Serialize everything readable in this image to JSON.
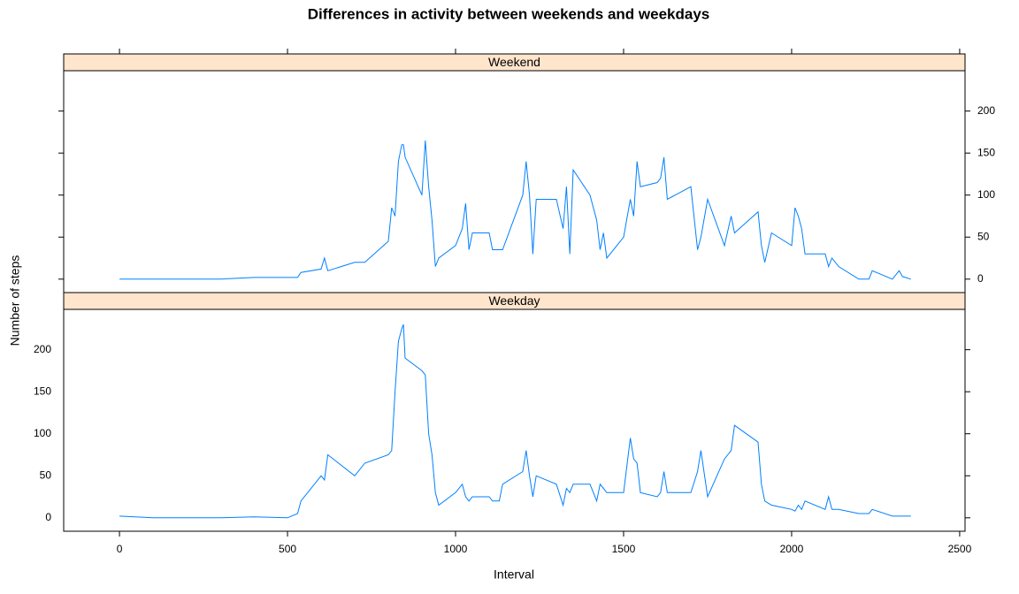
{
  "chart_data": {
    "type": "line",
    "title": "Differences in activity between weekends and weekdays",
    "xlabel": "Interval",
    "ylabel": "Number of steps",
    "x": [
      0,
      100,
      200,
      300,
      400,
      500,
      530,
      540,
      600,
      610,
      620,
      700,
      730,
      800,
      810,
      820,
      830,
      840,
      845,
      850,
      900,
      910,
      920,
      930,
      940,
      950,
      1000,
      1020,
      1030,
      1040,
      1050,
      1100,
      1110,
      1130,
      1140,
      1200,
      1210,
      1220,
      1230,
      1240,
      1300,
      1320,
      1330,
      1340,
      1350,
      1400,
      1420,
      1430,
      1440,
      1450,
      1500,
      1520,
      1530,
      1540,
      1550,
      1600,
      1610,
      1620,
      1630,
      1700,
      1720,
      1730,
      1750,
      1800,
      1820,
      1830,
      1900,
      1910,
      1920,
      1940,
      2000,
      2010,
      2020,
      2030,
      2040,
      2100,
      2110,
      2120,
      2140,
      2200,
      2230,
      2240,
      2300,
      2320,
      2330,
      2355
    ],
    "series": [
      {
        "name": "Weekend",
        "color": "#0080ff",
        "values": [
          0,
          0,
          0,
          0,
          2,
          2,
          2,
          8,
          12,
          25,
          10,
          20,
          20,
          45,
          85,
          75,
          140,
          160,
          160,
          145,
          100,
          165,
          110,
          70,
          15,
          25,
          40,
          60,
          90,
          35,
          55,
          55,
          35,
          35,
          35,
          100,
          140,
          100,
          30,
          95,
          95,
          60,
          110,
          30,
          130,
          100,
          70,
          35,
          55,
          25,
          50,
          95,
          75,
          140,
          110,
          115,
          120,
          145,
          95,
          110,
          35,
          50,
          95,
          40,
          75,
          55,
          80,
          40,
          20,
          55,
          40,
          85,
          75,
          60,
          30,
          30,
          15,
          25,
          15,
          0,
          0,
          10,
          0,
          10,
          3,
          0
        ]
      },
      {
        "name": "Weekday",
        "color": "#0080ff",
        "values": [
          2,
          0,
          0,
          0,
          1,
          0,
          5,
          20,
          50,
          45,
          75,
          50,
          65,
          75,
          80,
          150,
          210,
          225,
          230,
          190,
          175,
          170,
          100,
          75,
          30,
          15,
          30,
          40,
          25,
          20,
          25,
          25,
          20,
          20,
          40,
          55,
          80,
          50,
          25,
          50,
          40,
          15,
          35,
          30,
          40,
          40,
          20,
          40,
          35,
          30,
          30,
          95,
          70,
          65,
          30,
          25,
          30,
          55,
          30,
          30,
          55,
          80,
          25,
          70,
          80,
          110,
          90,
          40,
          20,
          15,
          10,
          8,
          15,
          10,
          20,
          10,
          25,
          10,
          10,
          5,
          5,
          10,
          2,
          2,
          2,
          2
        ]
      }
    ],
    "xlim": [
      -166,
      2516
    ],
    "xticks": [
      0,
      500,
      1000,
      1500,
      2000,
      2500
    ],
    "ylim": [
      -16,
      248
    ],
    "yticks": [
      0,
      50,
      100,
      150,
      200
    ],
    "strip_color": "#ffe5cc"
  }
}
